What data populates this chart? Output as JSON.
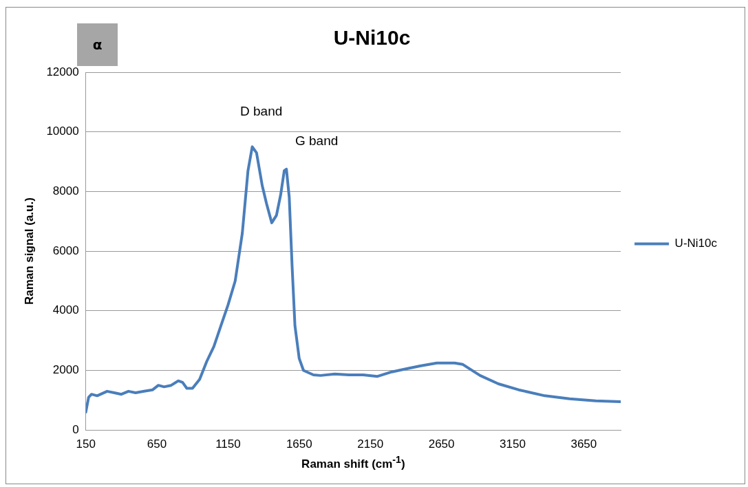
{
  "chart_data": {
    "type": "line",
    "title": "U-Ni10c",
    "xlabel": "Raman shift (cm$^{-1}$)",
    "ylabel": "Raman signal (a.u.)",
    "annotations": [
      "α",
      "D band",
      "G band"
    ],
    "xlim": [
      150,
      3910
    ],
    "xticks": [
      150,
      650,
      1150,
      1650,
      2150,
      2650,
      3150,
      3650
    ],
    "ylim": [
      0,
      12000
    ],
    "yticks": [
      0,
      2000,
      4000,
      6000,
      8000,
      10000,
      12000
    ],
    "grid": "y",
    "legend": "right",
    "marker": "none",
    "line_style": "solid",
    "series": [
      {
        "name": "U-Ni10c",
        "color": "#4a7ebb",
        "x": [
          150,
          170,
          190,
          230,
          300,
          350,
          400,
          450,
          500,
          560,
          620,
          660,
          700,
          750,
          800,
          830,
          860,
          900,
          950,
          1000,
          1050,
          1100,
          1150,
          1200,
          1250,
          1290,
          1320,
          1350,
          1390,
          1420,
          1457,
          1490,
          1520,
          1545,
          1560,
          1580,
          1600,
          1620,
          1650,
          1680,
          1712,
          1750,
          1800,
          1900,
          2000,
          2100,
          2200,
          2300,
          2400,
          2500,
          2617,
          2742,
          2800,
          2921,
          3050,
          3192,
          3376,
          3550,
          3734,
          3908
        ],
        "values": [
          600,
          1100,
          1200,
          1150,
          1300,
          1250,
          1200,
          1300,
          1250,
          1300,
          1350,
          1500,
          1450,
          1500,
          1650,
          1600,
          1400,
          1400,
          1700,
          2300,
          2800,
          3500,
          4200,
          5000,
          6600,
          8700,
          9500,
          9300,
          8200,
          7600,
          6950,
          7200,
          7900,
          8700,
          8750,
          7800,
          5500,
          3500,
          2400,
          2000,
          1930,
          1850,
          1830,
          1880,
          1850,
          1850,
          1800,
          1950,
          2050,
          2150,
          2250,
          2250,
          2200,
          1830,
          1550,
          1350,
          1150,
          1050,
          980,
          950
        ]
      }
    ]
  }
}
